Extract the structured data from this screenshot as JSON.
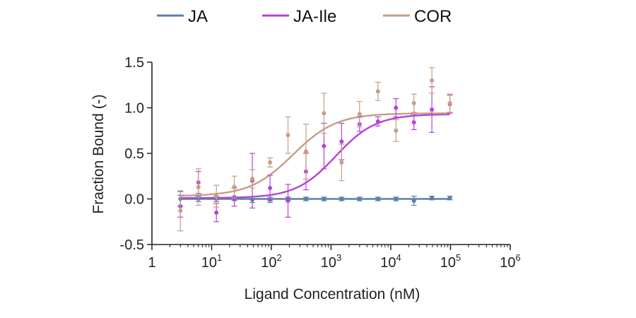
{
  "chart_data": {
    "type": "scatter",
    "xlabel": "Ligand Concentration (nM)",
    "ylabel": "Fraction Bound (-)",
    "x_scale": "log10",
    "xlim": [
      1,
      1000000
    ],
    "ylim": [
      -0.5,
      1.5
    ],
    "x_ticks": [
      {
        "value": 1,
        "base": "1",
        "exp": ""
      },
      {
        "value": 10,
        "base": "10",
        "exp": "1"
      },
      {
        "value": 100,
        "base": "10",
        "exp": "2"
      },
      {
        "value": 1000,
        "base": "10",
        "exp": "3"
      },
      {
        "value": 10000,
        "base": "10",
        "exp": "4"
      },
      {
        "value": 100000,
        "base": "10",
        "exp": "5"
      },
      {
        "value": 1000000,
        "base": "10",
        "exp": "6"
      }
    ],
    "y_ticks": [
      {
        "value": -0.5,
        "label": "-0.5"
      },
      {
        "value": 0.0,
        "label": "0.0"
      },
      {
        "value": 0.5,
        "label": "0.5"
      },
      {
        "value": 1.0,
        "label": "1.0"
      },
      {
        "value": 1.5,
        "label": "1.5"
      }
    ],
    "grid": false,
    "legend_position": "top",
    "series": [
      {
        "name": "JA",
        "color": "#5b7fa6",
        "fit": "flat",
        "points": [
          {
            "x": 3,
            "y": 0.0,
            "err": 0.08
          },
          {
            "x": 6,
            "y": 0.0,
            "err": 0.03
          },
          {
            "x": 12,
            "y": 0.0,
            "err": 0.03
          },
          {
            "x": 24,
            "y": 0.0,
            "err": 0.02
          },
          {
            "x": 48,
            "y": -0.01,
            "err": 0.03
          },
          {
            "x": 95,
            "y": -0.01,
            "err": 0.03
          },
          {
            "x": 190,
            "y": 0.0,
            "err": 0.02
          },
          {
            "x": 380,
            "y": 0.0,
            "err": 0.02
          },
          {
            "x": 760,
            "y": 0.0,
            "err": 0.02
          },
          {
            "x": 1500,
            "y": 0.0,
            "err": 0.02
          },
          {
            "x": 3000,
            "y": 0.0,
            "err": 0.02
          },
          {
            "x": 6100,
            "y": 0.0,
            "err": 0.02
          },
          {
            "x": 12200,
            "y": 0.0,
            "err": 0.02
          },
          {
            "x": 24400,
            "y": -0.02,
            "err": 0.05
          },
          {
            "x": 48800,
            "y": 0.01,
            "err": 0.02
          },
          {
            "x": 97600,
            "y": 0.01,
            "err": 0.02
          }
        ]
      },
      {
        "name": "JA-Ile",
        "color": "#b543d6",
        "fit": "sigmoid",
        "fit_params": {
          "bottom": 0.01,
          "top": 0.93,
          "ec50": 1200,
          "hill": 1.3
        },
        "points": [
          {
            "x": 3,
            "y": -0.08,
            "err": 0.12
          },
          {
            "x": 6,
            "y": 0.18,
            "err": 0.12
          },
          {
            "x": 12,
            "y": -0.15,
            "err": 0.1
          },
          {
            "x": 24,
            "y": 0.02,
            "err": 0.1
          },
          {
            "x": 48,
            "y": 0.2,
            "err": 0.3
          },
          {
            "x": 95,
            "y": 0.12,
            "err": 0.14
          },
          {
            "x": 190,
            "y": -0.02,
            "err": 0.18
          },
          {
            "x": 380,
            "y": 0.3,
            "err": 0.2
          },
          {
            "x": 760,
            "y": 0.58,
            "err": 0.25
          },
          {
            "x": 1500,
            "y": 0.63,
            "err": 0.2
          },
          {
            "x": 3000,
            "y": 0.82,
            "err": 0.08
          },
          {
            "x": 6100,
            "y": 0.85,
            "err": 0.05
          },
          {
            "x": 12200,
            "y": 1.0,
            "err": 0.1
          },
          {
            "x": 24400,
            "y": 0.84,
            "err": 0.08
          },
          {
            "x": 48800,
            "y": 0.98,
            "err": 0.25
          },
          {
            "x": 97600,
            "y": 1.04,
            "err": 0.1
          }
        ]
      },
      {
        "name": "COR",
        "color": "#c49e84",
        "fit": "sigmoid",
        "fit_params": {
          "bottom": 0.03,
          "top": 0.94,
          "ec50": 230,
          "hill": 1.2
        },
        "points": [
          {
            "x": 3,
            "y": -0.13,
            "err": 0.22
          },
          {
            "x": 6,
            "y": 0.13,
            "err": 0.2
          },
          {
            "x": 12,
            "y": 0.03,
            "err": 0.12
          },
          {
            "x": 24,
            "y": 0.13,
            "err": 0.12
          },
          {
            "x": 48,
            "y": 0.22,
            "err": 0.1
          },
          {
            "x": 95,
            "y": 0.4,
            "err": 0.05
          },
          {
            "x": 190,
            "y": 0.7,
            "err": 0.2
          },
          {
            "x": 380,
            "y": 0.52,
            "err": 0.3
          },
          {
            "x": 760,
            "y": 0.94,
            "err": 0.22
          },
          {
            "x": 1500,
            "y": 0.4,
            "err": 0.2
          },
          {
            "x": 3000,
            "y": 0.93,
            "err": 0.14
          },
          {
            "x": 6100,
            "y": 1.18,
            "err": 0.1
          },
          {
            "x": 12200,
            "y": 0.75,
            "err": 0.12
          },
          {
            "x": 24400,
            "y": 1.05,
            "err": 0.1
          },
          {
            "x": 48800,
            "y": 1.3,
            "err": 0.14
          },
          {
            "x": 97600,
            "y": 1.05,
            "err": 0.1
          }
        ]
      }
    ]
  }
}
